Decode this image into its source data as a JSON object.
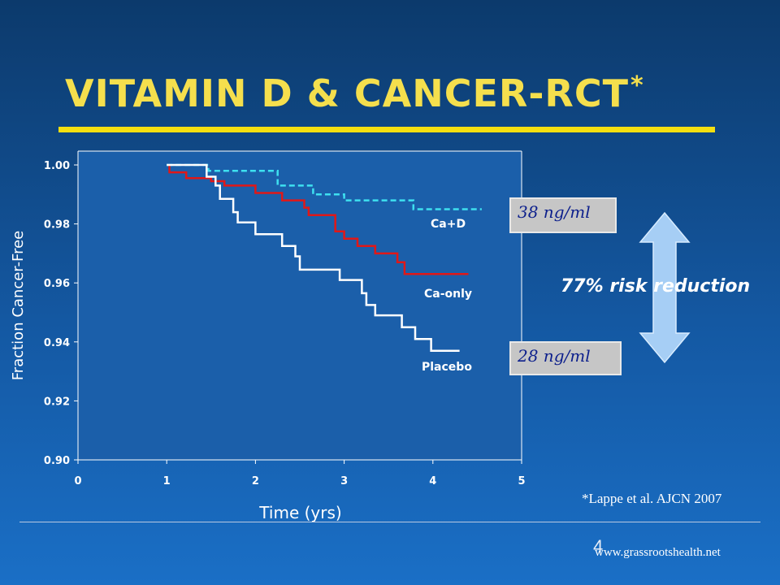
{
  "slide": {
    "title": "VITAMIN D & CANCER-RCT",
    "title_mark": "*",
    "citation": "*Lappe et al. AJCN 2007",
    "number": "4",
    "url": "www.grassrootshealth.net"
  },
  "annotations": {
    "callout_high": "38 ng/ml",
    "callout_low": "28 ng/ml",
    "risk_text": "77% risk reduction"
  },
  "colors": {
    "title": "#f5df4d",
    "cad": "#3ee0f0",
    "ca_only": "#e01818",
    "placebo": "#ffffff",
    "arrow": "#a6cef5"
  },
  "chart_data": {
    "type": "line",
    "title": "",
    "xlabel": "Time (yrs)",
    "ylabel": "Fraction Cancer-Free",
    "xlim": [
      0,
      5
    ],
    "ylim": [
      0.9,
      1.0
    ],
    "xticks": [
      "0",
      "1",
      "2",
      "3",
      "4",
      "5"
    ],
    "yticks": [
      "0.90",
      "0.92",
      "0.94",
      "0.96",
      "0.98",
      "1.00"
    ],
    "grid": false,
    "series": [
      {
        "name": "Ca+D",
        "style": "dashed",
        "color": "#3ee0f0",
        "x": [
          1.0,
          1.47,
          1.47,
          2.25,
          2.25,
          2.65,
          2.65,
          3.0,
          3.0,
          3.78,
          3.78,
          4.55
        ],
        "y": [
          1.0,
          1.0,
          0.998,
          0.998,
          0.993,
          0.993,
          0.99,
          0.99,
          0.988,
          0.988,
          0.985,
          0.985
        ]
      },
      {
        "name": "Ca-only",
        "style": "solid",
        "color": "#e01818",
        "x": [
          1.03,
          1.03,
          1.22,
          1.22,
          1.5,
          1.5,
          1.65,
          1.65,
          2.0,
          2.0,
          2.3,
          2.3,
          2.55,
          2.55,
          2.6,
          2.6,
          2.9,
          2.9,
          3.0,
          3.0,
          3.15,
          3.15,
          3.35,
          3.35,
          3.6,
          3.6,
          3.68,
          3.68,
          4.4
        ],
        "y": [
          1.0,
          0.9975,
          0.9975,
          0.9955,
          0.9955,
          0.9945,
          0.9945,
          0.993,
          0.993,
          0.9905,
          0.9905,
          0.988,
          0.988,
          0.9855,
          0.9855,
          0.983,
          0.983,
          0.9775,
          0.9775,
          0.975,
          0.975,
          0.9725,
          0.9725,
          0.97,
          0.97,
          0.967,
          0.967,
          0.963,
          0.963
        ]
      },
      {
        "name": "Placebo",
        "style": "solid",
        "color": "#ffffff",
        "x": [
          1.0,
          1.45,
          1.45,
          1.55,
          1.55,
          1.6,
          1.6,
          1.75,
          1.75,
          1.8,
          1.8,
          2.0,
          2.0,
          2.3,
          2.3,
          2.45,
          2.45,
          2.5,
          2.5,
          2.95,
          2.95,
          3.2,
          3.2,
          3.25,
          3.25,
          3.35,
          3.35,
          3.65,
          3.65,
          3.8,
          3.8,
          3.98,
          3.98,
          4.3
        ],
        "y": [
          1.0,
          1.0,
          0.996,
          0.996,
          0.993,
          0.993,
          0.9885,
          0.9885,
          0.984,
          0.984,
          0.9805,
          0.9805,
          0.9765,
          0.9765,
          0.9725,
          0.9725,
          0.969,
          0.969,
          0.9645,
          0.9645,
          0.961,
          0.961,
          0.9565,
          0.9565,
          0.9525,
          0.9525,
          0.949,
          0.949,
          0.945,
          0.945,
          0.941,
          0.941,
          0.937,
          0.937
        ]
      }
    ]
  }
}
